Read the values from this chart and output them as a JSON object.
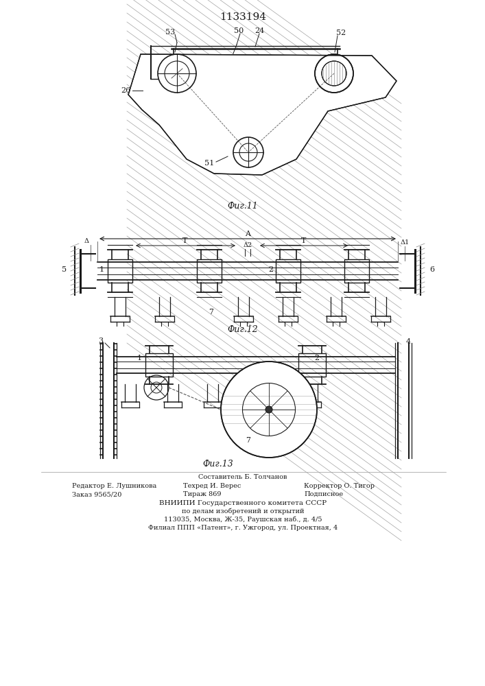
{
  "title": "1133194",
  "title_fontsize": 11,
  "fig11_label": "Фиг.11",
  "fig12_label": "Фиг.12",
  "fig13_label": "Фиг.13",
  "bg_color": "#ffffff",
  "line_color": "#1a1a1a"
}
